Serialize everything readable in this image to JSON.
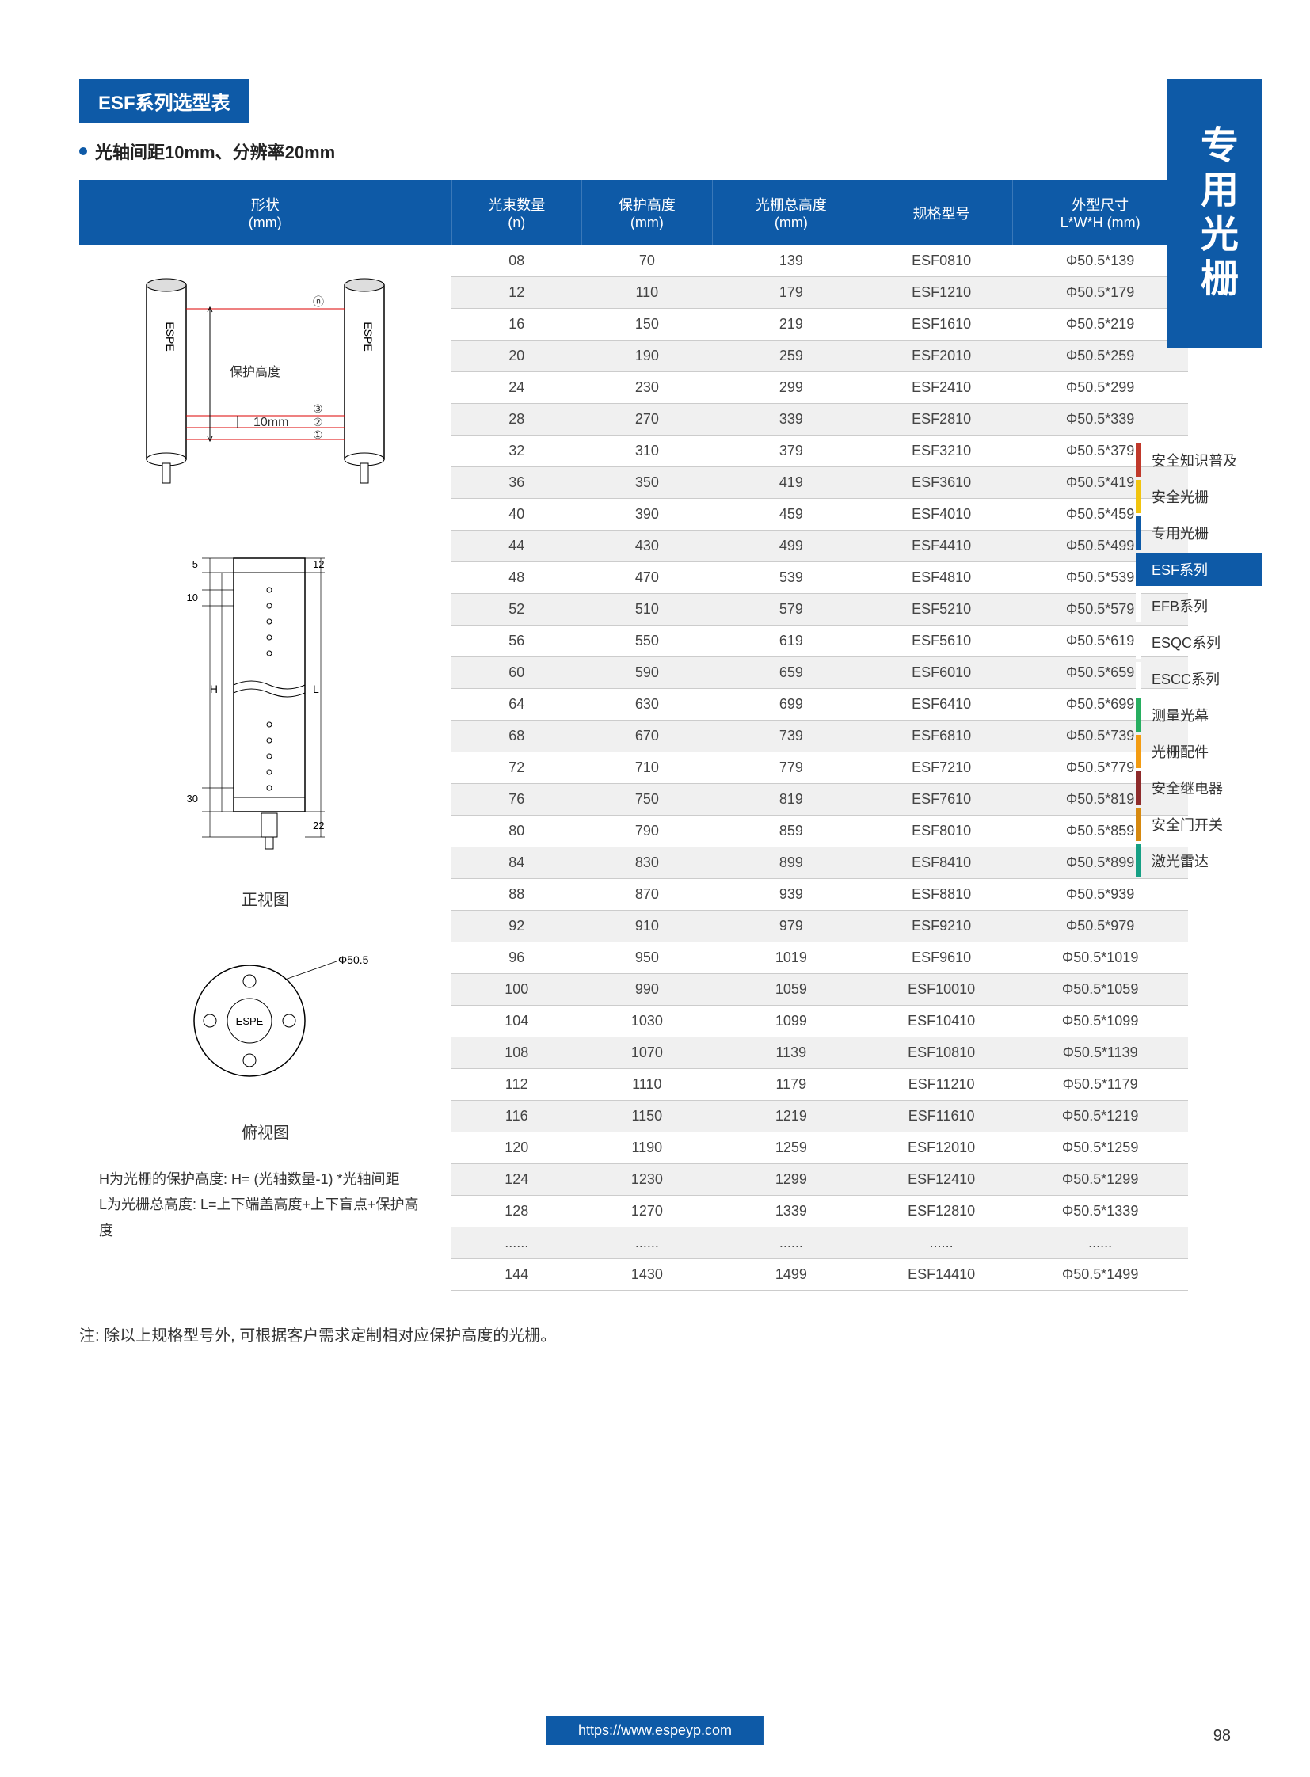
{
  "page_title": "ESF系列选型表",
  "subtitle": "光轴间距10mm、分辨率20mm",
  "table": {
    "headers": [
      "形状\n(mm)",
      "光束数量\n(n)",
      "保护高度\n(mm)",
      "光栅总高度\n(mm)",
      "规格型号",
      "外型尺寸\nL*W*H (mm)"
    ],
    "rows": [
      [
        "08",
        "70",
        "139",
        "ESF0810",
        "Φ50.5*139"
      ],
      [
        "12",
        "110",
        "179",
        "ESF1210",
        "Φ50.5*179"
      ],
      [
        "16",
        "150",
        "219",
        "ESF1610",
        "Φ50.5*219"
      ],
      [
        "20",
        "190",
        "259",
        "ESF2010",
        "Φ50.5*259"
      ],
      [
        "24",
        "230",
        "299",
        "ESF2410",
        "Φ50.5*299"
      ],
      [
        "28",
        "270",
        "339",
        "ESF2810",
        "Φ50.5*339"
      ],
      [
        "32",
        "310",
        "379",
        "ESF3210",
        "Φ50.5*379"
      ],
      [
        "36",
        "350",
        "419",
        "ESF3610",
        "Φ50.5*419"
      ],
      [
        "40",
        "390",
        "459",
        "ESF4010",
        "Φ50.5*459"
      ],
      [
        "44",
        "430",
        "499",
        "ESF4410",
        "Φ50.5*499"
      ],
      [
        "48",
        "470",
        "539",
        "ESF4810",
        "Φ50.5*539"
      ],
      [
        "52",
        "510",
        "579",
        "ESF5210",
        "Φ50.5*579"
      ],
      [
        "56",
        "550",
        "619",
        "ESF5610",
        "Φ50.5*619"
      ],
      [
        "60",
        "590",
        "659",
        "ESF6010",
        "Φ50.5*659"
      ],
      [
        "64",
        "630",
        "699",
        "ESF6410",
        "Φ50.5*699"
      ],
      [
        "68",
        "670",
        "739",
        "ESF6810",
        "Φ50.5*739"
      ],
      [
        "72",
        "710",
        "779",
        "ESF7210",
        "Φ50.5*779"
      ],
      [
        "76",
        "750",
        "819",
        "ESF7610",
        "Φ50.5*819"
      ],
      [
        "80",
        "790",
        "859",
        "ESF8010",
        "Φ50.5*859"
      ],
      [
        "84",
        "830",
        "899",
        "ESF8410",
        "Φ50.5*899"
      ],
      [
        "88",
        "870",
        "939",
        "ESF8810",
        "Φ50.5*939"
      ],
      [
        "92",
        "910",
        "979",
        "ESF9210",
        "Φ50.5*979"
      ],
      [
        "96",
        "950",
        "1019",
        "ESF9610",
        "Φ50.5*1019"
      ],
      [
        "100",
        "990",
        "1059",
        "ESF10010",
        "Φ50.5*1059"
      ],
      [
        "104",
        "1030",
        "1099",
        "ESF10410",
        "Φ50.5*1099"
      ],
      [
        "108",
        "1070",
        "1139",
        "ESF10810",
        "Φ50.5*1139"
      ],
      [
        "112",
        "1110",
        "1179",
        "ESF11210",
        "Φ50.5*1179"
      ],
      [
        "116",
        "1150",
        "1219",
        "ESF11610",
        "Φ50.5*1219"
      ],
      [
        "120",
        "1190",
        "1259",
        "ESF12010",
        "Φ50.5*1259"
      ],
      [
        "124",
        "1230",
        "1299",
        "ESF12410",
        "Φ50.5*1299"
      ],
      [
        "128",
        "1270",
        "1339",
        "ESF12810",
        "Φ50.5*1339"
      ],
      [
        "......",
        "......",
        "......",
        "......",
        "......"
      ],
      [
        "144",
        "1430",
        "1499",
        "ESF14410",
        "Φ50.5*1499"
      ]
    ]
  },
  "diagrams": {
    "protect_height_label": "保护高度",
    "spacing_label": "10mm",
    "brand": "ESPE",
    "front_view_label": "正视图",
    "top_view_label": "俯视图",
    "top_diameter_label": "Φ50.5",
    "dim_labels": {
      "t5": "5",
      "t12": "12",
      "t10": "10",
      "tH": "H",
      "tL": "L",
      "t30": "30",
      "t22": "22"
    },
    "circles_n": "ⓝ",
    "circles_3": "③",
    "circles_2": "②",
    "circles_1": "①"
  },
  "formula_note_h": "H为光栅的保护高度: H= (光轴数量-1) *光轴间距",
  "formula_note_l": "L为光栅总高度: L=上下端盖高度+上下盲点+保护高度",
  "footnote": "注: 除以上规格型号外, 可根据客户需求定制相对应保护高度的光栅。",
  "footer_url": "https://www.espeyp.com",
  "page_number": "98",
  "side_banner": "专用光栅",
  "side_nav": [
    {
      "label": "安全知识普及",
      "color": "#c0392b"
    },
    {
      "label": "安全光栅",
      "color": "#f1c40f"
    },
    {
      "label": "专用光栅",
      "color": "#0e5aa7"
    },
    {
      "label": "ESF系列",
      "color": "#0e5aa7",
      "active": true
    },
    {
      "label": "EFB系列",
      "color": "#ffffff"
    },
    {
      "label": "ESQC系列",
      "color": "#ffffff"
    },
    {
      "label": "ESCC系列",
      "color": "#ffffff"
    },
    {
      "label": "测量光幕",
      "color": "#27ae60"
    },
    {
      "label": "光栅配件",
      "color": "#f39c12"
    },
    {
      "label": "安全继电器",
      "color": "#8e2b2b"
    },
    {
      "label": "安全门开关",
      "color": "#d68910"
    },
    {
      "label": "激光雷达",
      "color": "#16a085"
    }
  ]
}
